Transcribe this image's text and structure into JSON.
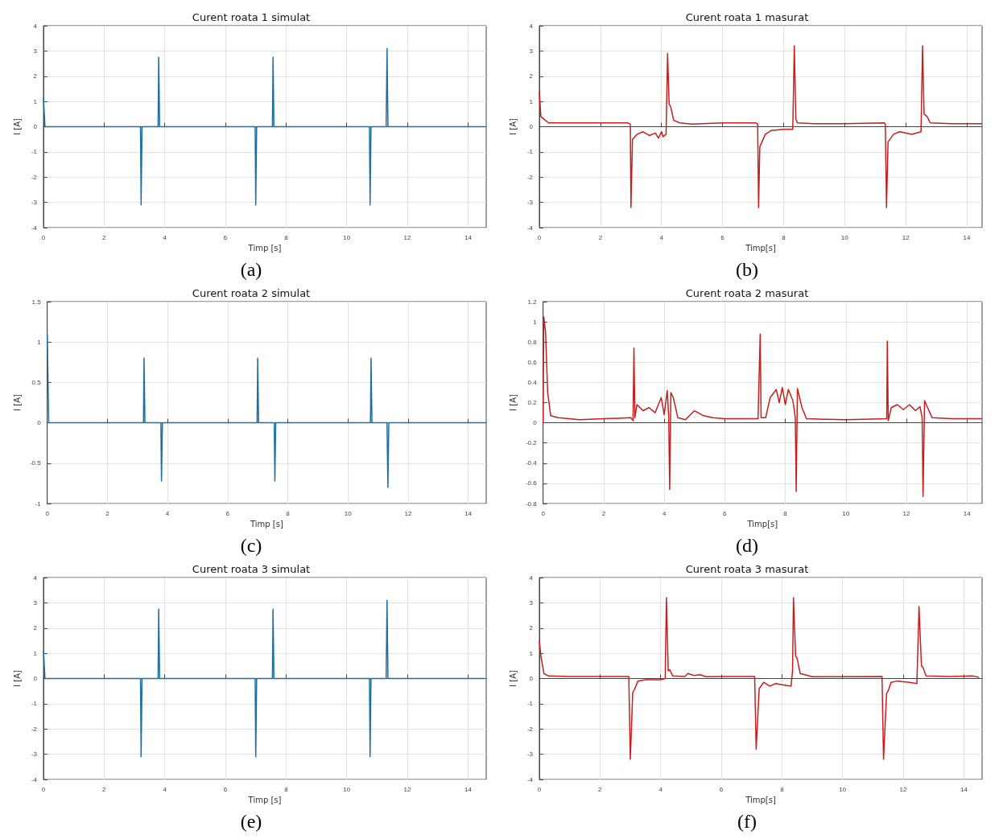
{
  "chart_data": [
    {
      "type": "line",
      "title": "Curent roata 1 simulat",
      "xlabel": "Timp [s]",
      "ylabel": "I [A]",
      "annotations": [
        "(a)"
      ],
      "grid": true,
      "xlim": [
        0,
        14.6
      ],
      "xticks": [
        0,
        2,
        4,
        6,
        8,
        10,
        12,
        14
      ],
      "ylim": [
        -4,
        4
      ],
      "yticks": [
        -4,
        -3,
        -2,
        -1,
        0,
        1,
        2,
        3,
        4
      ],
      "x": [
        0,
        0.05,
        3.2,
        3.22,
        3.25,
        3.78,
        3.8,
        3.83,
        6.98,
        7.0,
        7.03,
        7.55,
        7.57,
        7.6,
        10.75,
        10.77,
        10.8,
        11.3,
        11.33,
        11.36,
        14.55
      ],
      "series": [
        {
          "color": "#1f6fa3",
          "values": [
            1.15,
            0,
            0,
            -3.1,
            0,
            0,
            2.75,
            0,
            0,
            -3.1,
            0,
            0,
            2.75,
            0,
            0,
            -3.1,
            0,
            0,
            3.1,
            0,
            0
          ]
        }
      ]
    },
    {
      "type": "line",
      "title": "Curent roata 1 masurat",
      "xlabel": "Timp[s]",
      "ylabel": "I [A]",
      "annotations": [
        "(b)"
      ],
      "grid": true,
      "xlim": [
        0,
        14.5
      ],
      "xticks": [
        0,
        2,
        4,
        6,
        8,
        10,
        12,
        14
      ],
      "ylim": [
        -4,
        4
      ],
      "yticks": [
        -4,
        -3,
        -2,
        -1,
        0,
        1,
        2,
        3,
        4
      ],
      "x": [
        0,
        0.05,
        0.15,
        0.3,
        1,
        2,
        2.9,
        2.98,
        3.0,
        3.05,
        3.2,
        3.4,
        3.6,
        3.8,
        3.9,
        4.0,
        4.05,
        4.15,
        4.2,
        4.25,
        4.3,
        4.4,
        4.6,
        5,
        6,
        7.1,
        7.15,
        7.18,
        7.22,
        7.4,
        7.6,
        8,
        8.3,
        8.35,
        8.4,
        8.45,
        9,
        10,
        11.3,
        11.33,
        11.37,
        11.42,
        11.6,
        11.8,
        12.2,
        12.5,
        12.55,
        12.6,
        12.7,
        12.8,
        13.5,
        14.5
      ],
      "series": [
        {
          "color": "#c81e1e",
          "values": [
            1.4,
            0.4,
            0.3,
            0.15,
            0.15,
            0.15,
            0.15,
            0.1,
            -3.2,
            -0.5,
            -0.3,
            -0.2,
            -0.35,
            -0.25,
            -0.45,
            -0.2,
            -0.4,
            -0.3,
            2.9,
            0.9,
            0.8,
            0.25,
            0.15,
            0.1,
            0.15,
            0.15,
            0.1,
            -3.2,
            -0.8,
            -0.3,
            -0.15,
            -0.1,
            -0.1,
            3.2,
            0.3,
            0.15,
            0.12,
            0.12,
            0.15,
            0.1,
            -3.2,
            -0.6,
            -0.3,
            -0.2,
            -0.3,
            -0.2,
            3.2,
            0.5,
            0.4,
            0.15,
            0.12,
            0.12
          ]
        }
      ]
    },
    {
      "type": "line",
      "title": "Curent roata 2 simulat",
      "xlabel": "Timp [s]",
      "ylabel": "I [A]",
      "annotations": [
        "(c)"
      ],
      "grid": true,
      "xlim": [
        0,
        14.6
      ],
      "xticks": [
        0,
        2,
        4,
        6,
        8,
        10,
        12,
        14
      ],
      "ylim": [
        -1,
        1.5
      ],
      "yticks": [
        -1,
        -0.5,
        0,
        0.5,
        1,
        1.5
      ],
      "x": [
        0,
        0.05,
        3.2,
        3.22,
        3.25,
        3.78,
        3.8,
        3.83,
        6.98,
        7.0,
        7.03,
        7.55,
        7.57,
        7.6,
        10.75,
        10.77,
        10.8,
        11.3,
        11.33,
        11.36,
        14.6
      ],
      "series": [
        {
          "color": "#1f6fa3",
          "values": [
            1.1,
            0,
            0,
            0.8,
            0,
            0,
            -0.72,
            0,
            0,
            0.8,
            0,
            0,
            -0.72,
            0,
            0,
            0.8,
            0,
            0,
            -0.8,
            0,
            0
          ]
        }
      ]
    },
    {
      "type": "line",
      "title": "Curent roata 2 masurat",
      "xlabel": "Timp[s]",
      "ylabel": "I [A]",
      "annotations": [
        "(d)"
      ],
      "grid": true,
      "xlim": [
        0,
        14.5
      ],
      "xticks": [
        0,
        2,
        4,
        6,
        8,
        10,
        12,
        14
      ],
      "ylim": [
        -0.8,
        1.2
      ],
      "yticks": [
        -0.8,
        -0.6,
        -0.4,
        -0.2,
        0,
        0.2,
        0.4,
        0.6,
        0.8,
        1,
        1.2
      ],
      "x": [
        0,
        0.02,
        0.08,
        0.15,
        0.25,
        0.5,
        1.2,
        2,
        2.9,
        2.97,
        3.0,
        3.03,
        3.1,
        3.3,
        3.5,
        3.7,
        3.9,
        4.0,
        4.1,
        4.15,
        4.18,
        4.22,
        4.3,
        4.45,
        4.7,
        5.0,
        5.3,
        5.6,
        6,
        7.1,
        7.17,
        7.2,
        7.35,
        7.5,
        7.7,
        7.8,
        7.9,
        8.0,
        8.1,
        8.25,
        8.33,
        8.36,
        8.4,
        8.55,
        8.7,
        10,
        11.35,
        11.37,
        11.4,
        11.5,
        11.7,
        11.9,
        12.1,
        12.3,
        12.45,
        12.52,
        12.55,
        12.6,
        12.7,
        12.85,
        13.5,
        14.5
      ],
      "series": [
        {
          "color": "#c81e1e",
          "values": [
            0,
            1.05,
            0.9,
            0.3,
            0.07,
            0.05,
            0.03,
            0.04,
            0.05,
            0.02,
            0.74,
            0.05,
            0.18,
            0.12,
            0.15,
            0.1,
            0.25,
            0.08,
            0.32,
            0.05,
            -0.66,
            0.3,
            0.25,
            0.05,
            0.03,
            0.12,
            0.07,
            0.05,
            0.04,
            0.04,
            0.88,
            0.05,
            0.05,
            0.25,
            0.33,
            0.2,
            0.35,
            0.18,
            0.33,
            0.22,
            0.05,
            -0.68,
            0.34,
            0.15,
            0.04,
            0.03,
            0.04,
            0.81,
            0.02,
            0.15,
            0.18,
            0.13,
            0.18,
            0.12,
            0.16,
            0.05,
            -0.73,
            0.22,
            0.15,
            0.05,
            0.04,
            0.04
          ]
        }
      ]
    },
    {
      "type": "line",
      "title": "Curent roata 3 simulat",
      "xlabel": "Timp [s]",
      "ylabel": "I [A]",
      "annotations": [
        "(e)"
      ],
      "grid": true,
      "xlim": [
        0,
        14.6
      ],
      "xticks": [
        0,
        2,
        4,
        6,
        8,
        10,
        12,
        14
      ],
      "ylim": [
        -4,
        4
      ],
      "yticks": [
        -4,
        -3,
        -2,
        -1,
        0,
        1,
        2,
        3,
        4
      ],
      "x": [
        0,
        0.05,
        3.2,
        3.22,
        3.25,
        3.78,
        3.8,
        3.83,
        6.98,
        7.0,
        7.03,
        7.55,
        7.57,
        7.6,
        10.75,
        10.77,
        10.8,
        11.3,
        11.33,
        11.36,
        14.55
      ],
      "series": [
        {
          "color": "#1f6fa3",
          "values": [
            1.15,
            0,
            0,
            -3.1,
            0,
            0,
            2.75,
            0,
            0,
            -3.1,
            0,
            0,
            2.75,
            0,
            0,
            -3.1,
            0,
            0,
            3.1,
            0,
            0
          ]
        }
      ]
    },
    {
      "type": "line",
      "title": "Curent roata 3 masurat",
      "xlabel": "Timp[s]",
      "ylabel": "I [A]",
      "annotations": [
        "(f)"
      ],
      "grid": true,
      "xlim": [
        0,
        14.6
      ],
      "xticks": [
        0,
        2,
        4,
        6,
        8,
        10,
        12,
        14
      ],
      "ylim": [
        -4,
        4
      ],
      "yticks": [
        -4,
        -3,
        -2,
        -1,
        0,
        1,
        2,
        3,
        4
      ],
      "x": [
        0,
        0.05,
        0.15,
        0.3,
        1,
        2,
        2.95,
        3.0,
        3.08,
        3.15,
        3.25,
        3.5,
        4.0,
        4.15,
        4.19,
        4.25,
        4.3,
        4.4,
        4.8,
        4.9,
        5.1,
        5.3,
        5.5,
        6,
        7.1,
        7.15,
        7.25,
        7.4,
        7.6,
        7.8,
        8,
        8.3,
        8.35,
        8.38,
        8.45,
        8.5,
        8.6,
        9,
        10,
        11.3,
        11.35,
        11.45,
        11.5,
        11.6,
        11.8,
        12.2,
        12.45,
        12.52,
        12.6,
        12.65,
        12.75,
        13.5,
        14.3,
        14.5
      ],
      "series": [
        {
          "color": "#c81e1e",
          "values": [
            1.5,
            0.9,
            0.2,
            0.1,
            0.08,
            0.08,
            0.08,
            -3.2,
            -0.55,
            -0.4,
            -0.1,
            -0.05,
            -0.05,
            0,
            3.2,
            0.3,
            0.35,
            0.1,
            0.08,
            0.2,
            0.12,
            0.15,
            0.07,
            0.08,
            0.08,
            -2.8,
            -0.4,
            -0.15,
            -0.3,
            -0.2,
            -0.25,
            -0.3,
            0.3,
            3.2,
            0.9,
            0.8,
            0.2,
            0.07,
            0.07,
            0.08,
            -3.2,
            -0.6,
            -0.5,
            -0.15,
            -0.1,
            -0.15,
            -0.2,
            2.85,
            0.5,
            0.45,
            0.1,
            0.08,
            0.1,
            0.05
          ]
        }
      ]
    }
  ]
}
